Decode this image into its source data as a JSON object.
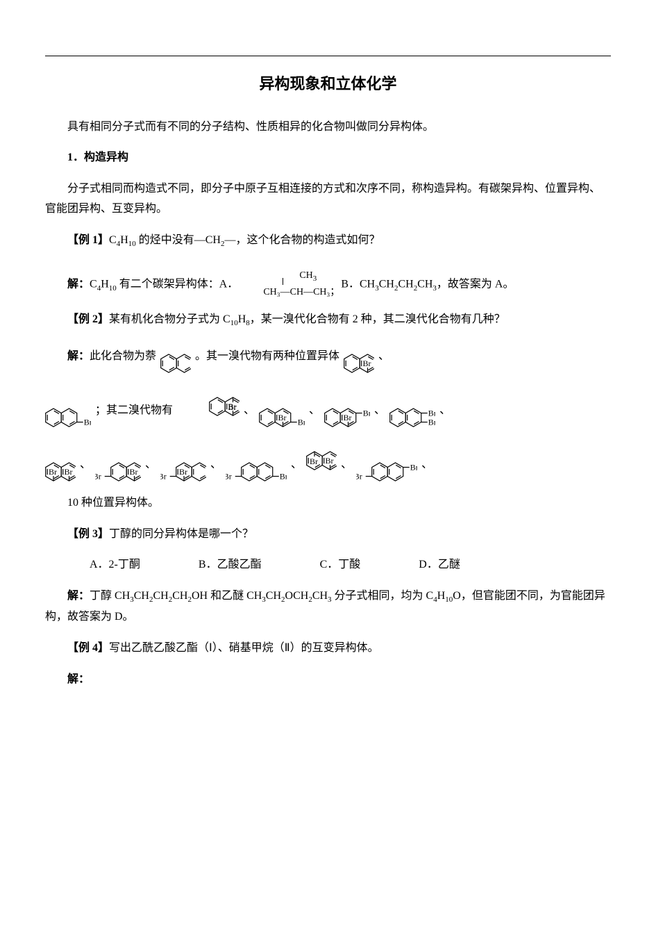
{
  "title": "异构现象和立体化学",
  "intro": "具有相同分子式而有不同的分子结构、性质相异的化合物叫做同分异构体。",
  "section1": {
    "heading": "1．构造异构",
    "body": "分子式相同而构造式不同，即分子中原子互相连接的方式和次序不同，称构造异构。有碳架异构、位置异构、官能团异构、互变异构。"
  },
  "ex1": {
    "label": "【例 1】",
    "q_part1": "C",
    "q_sub1": "4",
    "q_part2": "H",
    "q_sub2": "10",
    "q_part3": " 的烃中没有—CH",
    "q_sub3": "2",
    "q_part4": "—，这个化合物的构造式如何？",
    "sol_label": "解：",
    "sol_text1": "C",
    "sol_sub1": "4",
    "sol_text2": "H",
    "sol_sub2": "10",
    "sol_text3": " 有二个碳架异构体：A．",
    "iso_top": "CH",
    "iso_top_sub": "3",
    "iso_bot": "CH₃—CH—CH₃；",
    "b_part1": "B．CH",
    "b_sub1": "3",
    "b_part2": "CH",
    "b_sub2": "2",
    "b_part3": "CH",
    "b_sub3": "2",
    "b_part4": "CH",
    "b_sub4": "3",
    "b_part5": "，故答案为 A。"
  },
  "ex2": {
    "label": "【例 2】",
    "q_part1": "某有机化合物分子式为 C",
    "q_sub1": "10",
    "q_part2": "H",
    "q_sub2": "8",
    "q_part3": "，某一溴代化合物有 2 种，其二溴代化合物有几种？",
    "sol_label": "解：",
    "sol_text1": "此化合物为萘",
    "sol_text2": "。其一溴代物有两种位置异体",
    "sep": "、",
    "mid_text": "；其二溴代物有",
    "tail": "10 种位置异构体。"
  },
  "ex3": {
    "label": "【例 3】",
    "q": "丁醇的同分异构体是哪一个？",
    "optA": "A．2-丁酮",
    "optB": "B．乙酸乙酯",
    "optC": "C．丁酸",
    "optD": "D．乙醚",
    "sol_label": "解：",
    "sol_p1": "丁醇 CH",
    "s1": "3",
    "sp2": "CH",
    "s2": "2",
    "sp3": "CH",
    "s3": "2",
    "sp4": "CH",
    "s4": "2",
    "sp5": "OH 和乙醚 CH",
    "s5": "3",
    "sp6": "CH",
    "s6": "2",
    "sp7": "OCH",
    "s7": "2",
    "sp8": "CH",
    "s8": "3",
    "sp9": " 分子式相同，均为 C",
    "s9": "4",
    "sp10": "H",
    "s10": "10",
    "sp11": "O，但官能团不同，为官能团异构，故答案为 D。"
  },
  "ex4": {
    "label": "【例 4】",
    "q": "写出乙酰乙酸乙酯（Ⅰ）、硝基甲烷（Ⅱ）的互变异构体。",
    "sol_label": "解："
  },
  "naph": {
    "w": 44,
    "h": 30,
    "stroke": "#000000",
    "sw": 1.2
  },
  "br_label": "Br"
}
